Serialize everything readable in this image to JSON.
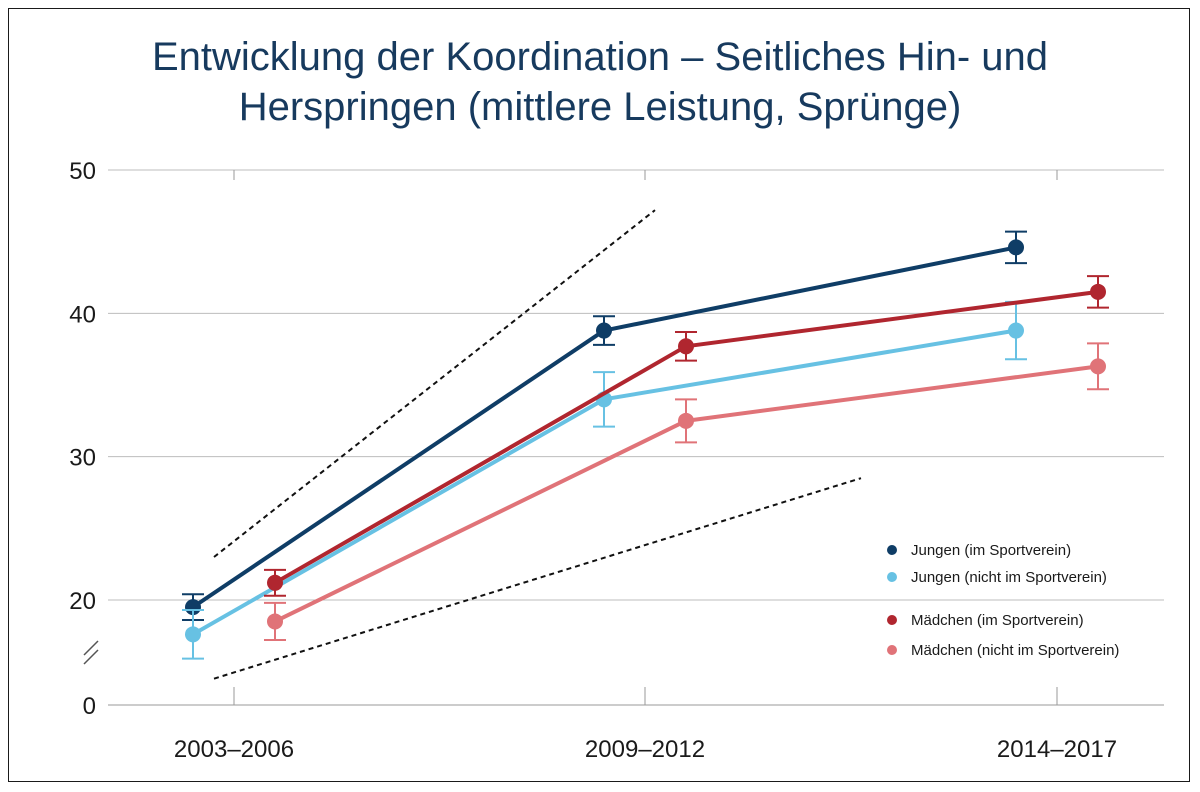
{
  "chart_data": {
    "type": "line",
    "title_line1": "Entwicklung der Koordination – Seitliches Hin- und",
    "title_line2": "Herspringen (mittlere Leistung, Sprünge)",
    "categories": [
      "2003–2006",
      "2009–2012",
      "2014–2017"
    ],
    "y_ticks": [
      "50",
      "40",
      "30",
      "20",
      "0"
    ],
    "y_axis_break": true,
    "ylim": [
      15,
      50
    ],
    "grid": true,
    "legend_position": "bottom-right",
    "series": [
      {
        "name": "Jungen (im Sportverein)",
        "color": "#0f3d66",
        "values": [
          19.5,
          38.8,
          44.6
        ],
        "err": [
          0.9,
          1.0,
          1.1
        ]
      },
      {
        "name": "Jungen (nicht im Sportverein)",
        "color": "#67c1e3",
        "values": [
          17.6,
          34.0,
          38.8
        ],
        "err": [
          1.7,
          1.9,
          2.0
        ]
      },
      {
        "name": "Mädchen (im Sportverein)",
        "color": "#b0262f",
        "values": [
          21.2,
          37.7,
          41.5
        ],
        "err": [
          0.9,
          1.0,
          1.1
        ]
      },
      {
        "name": "Mädchen (nicht im Sportverein)",
        "color": "#e07378",
        "values": [
          18.5,
          32.5,
          36.3
        ],
        "err": [
          1.3,
          1.5,
          1.6
        ]
      }
    ],
    "trend_lines": [
      {
        "from": {
          "category": 0,
          "value": 23
        },
        "to": {
          "category": 1,
          "value": 47.2
        }
      },
      {
        "from": {
          "category": 0,
          "value": 14.5
        },
        "to": {
          "category": 1.5,
          "value": 28.5
        }
      }
    ]
  }
}
